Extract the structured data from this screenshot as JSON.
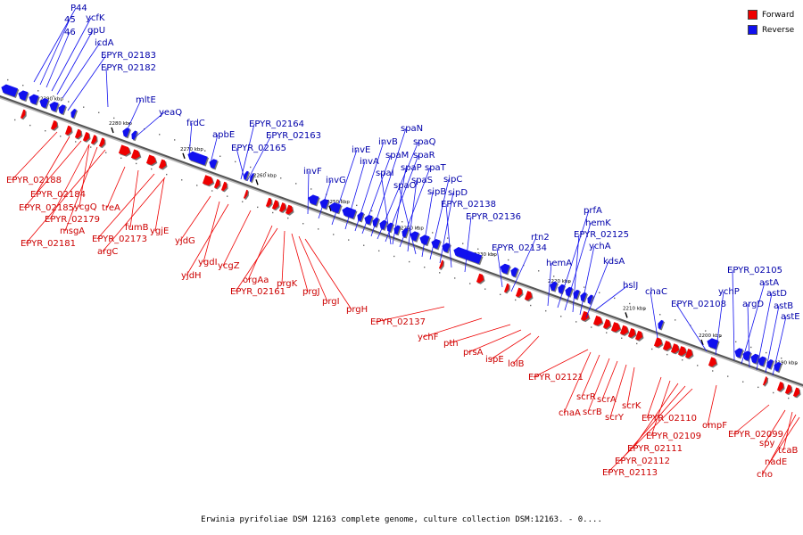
{
  "legend": {
    "forward_label": "Forward",
    "reverse_label": "Reverse",
    "forward_color": "#ee0000",
    "reverse_color": "#1111ee"
  },
  "caption": "Erwinia pyrifoliae DSM 12163 complete genome, culture collection DSM:12163. - 0....",
  "ticks": [
    "2290 kbp",
    "2280 kbp",
    "2270 kbp",
    "2260 kbp",
    "2250 kbp",
    "2240 kbp",
    "2230 kbp",
    "2220 kbp",
    "2210 kbp",
    "2200 kbp",
    "2190 kbp"
  ],
  "forward_genes": [
    "EPYR_02188",
    "EPYR_02184",
    "EPYR_02185",
    "EPYR_02179",
    "msgA",
    "EPYR_02181",
    "treA",
    "fumB",
    "EPYR_02173",
    "argC",
    "ygjE",
    "yjdG",
    "ygdI",
    "yjdH",
    "ycgZ",
    "orgAa",
    "EPYR_02161",
    "prgK",
    "prgJ",
    "prgI",
    "prgH",
    "ycgQ",
    "EPYR_02137",
    "ychF",
    "pth",
    "prsA",
    "ispE",
    "lolB",
    "EPYR_02121",
    "chaA",
    "scrR",
    "scrB",
    "scrA",
    "scrY",
    "scrK",
    "EPYR_02110",
    "EPYR_02109",
    "EPYR_02111",
    "EPYR_02112",
    "EPYR_02113",
    "ompF",
    "EPYR_02099",
    "spy",
    "tcaB",
    "nadE",
    "cho"
  ],
  "reverse_genes": [
    "P44",
    "45",
    "46",
    "ycfK",
    "gpU",
    "icdA",
    "EPYR_02183",
    "EPYR_02182",
    "mltE",
    "yeaQ",
    "frdC",
    "apbE",
    "EPYR_02164",
    "EPYR_02163",
    "EPYR_02165",
    "invF",
    "invG",
    "invE",
    "invA",
    "invB",
    "spaM",
    "spaN",
    "spaQ",
    "spaR",
    "spaP",
    "spaT",
    "spaI",
    "spaS",
    "spaO",
    "sipB",
    "sipC",
    "sipD",
    "EPYR_02138",
    "EPYR_02136",
    "EPYR_02134",
    "rtn2",
    "hemA",
    "prfA",
    "hemK",
    "EPYR_02125",
    "ychA",
    "kdsA",
    "hslJ",
    "chaC",
    "EPYR_02108",
    "ychP",
    "EPYR_02105",
    "astA",
    "argD",
    "astD",
    "astB",
    "astE"
  ]
}
